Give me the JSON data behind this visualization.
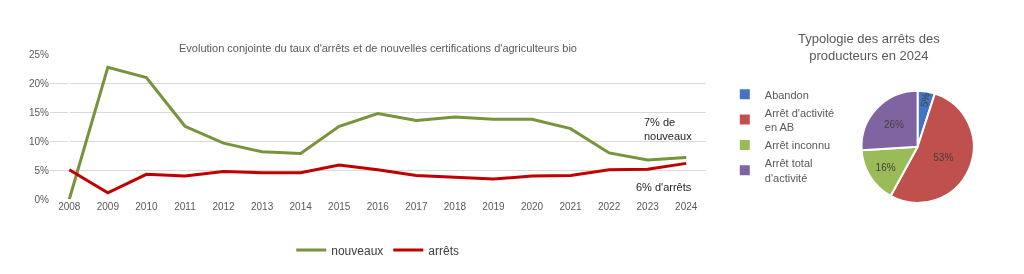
{
  "chart_data": [
    {
      "type": "line",
      "title": "Evolution conjointe du taux d'arrêts et de nouvelles certifications d'agriculteurs bio",
      "categories": [
        "2008",
        "2009",
        "2010",
        "2011",
        "2012",
        "2013",
        "2014",
        "2015",
        "2016",
        "2017",
        "2018",
        "2019",
        "2020",
        "2021",
        "2022",
        "2023",
        "2024"
      ],
      "series": [
        {
          "name": "nouveaux",
          "color": "#77933c",
          "values": [
            0,
            22.8,
            21.0,
            12.6,
            9.7,
            8.2,
            7.9,
            12.6,
            14.8,
            13.6,
            14.2,
            13.8,
            13.8,
            12.2,
            8.0,
            6.8,
            7.2
          ]
        },
        {
          "name": "arrêts",
          "color": "#c00000",
          "values": [
            5.1,
            1.1,
            4.3,
            4.0,
            4.8,
            4.6,
            4.6,
            5.9,
            5.1,
            4.1,
            3.8,
            3.5,
            4.0,
            4.1,
            5.1,
            5.2,
            6.2
          ]
        }
      ],
      "ylim": [
        0,
        25
      ],
      "yticks": [
        {
          "value": 0,
          "label": "0%"
        },
        {
          "value": 5,
          "label": "5%"
        },
        {
          "value": 10,
          "label": "10%"
        },
        {
          "value": 15,
          "label": "15%"
        },
        {
          "value": 20,
          "label": "20%"
        },
        {
          "value": 25,
          "label": "25%"
        }
      ],
      "annotations": [
        {
          "text": "7% de\nnouveaux",
          "x": "2024",
          "y": 7.2
        },
        {
          "text": "6% d'arrêts",
          "x": "2024",
          "y": 6.2
        }
      ],
      "grid": "y",
      "legend": "bottom",
      "marker": "none",
      "line_style": "solid"
    },
    {
      "type": "pie",
      "title": "Typologie des arrêts des\nproducteurs en 2024",
      "categories": [
        "Abandon",
        "Arrêt d'activité\nen AB",
        "Arrêt inconnu",
        "Arrêt total\nd'activité"
      ],
      "values": [
        5,
        53,
        16,
        26
      ],
      "value_labels": [
        "5%",
        "53%",
        "16%",
        "26%"
      ],
      "colors": [
        "#4472c4",
        "#c0504d",
        "#9bbb59",
        "#8064a2"
      ],
      "legend": "left"
    }
  ]
}
